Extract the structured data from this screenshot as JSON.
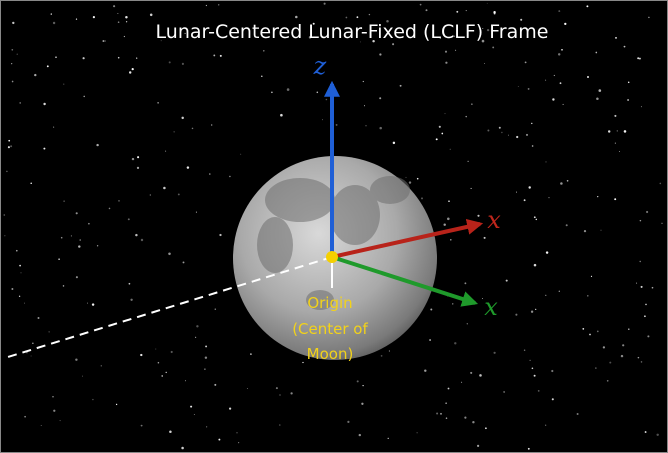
{
  "title": "Lunar-Centered Lunar-Fixed (LCLF) Frame",
  "axes": [
    {
      "label": "z"
    },
    {
      "label": "x"
    },
    {
      "label": "x"
    }
  ],
  "origin": {
    "lines": [
      "Origin",
      "(Center of",
      "Moon)"
    ]
  }
}
